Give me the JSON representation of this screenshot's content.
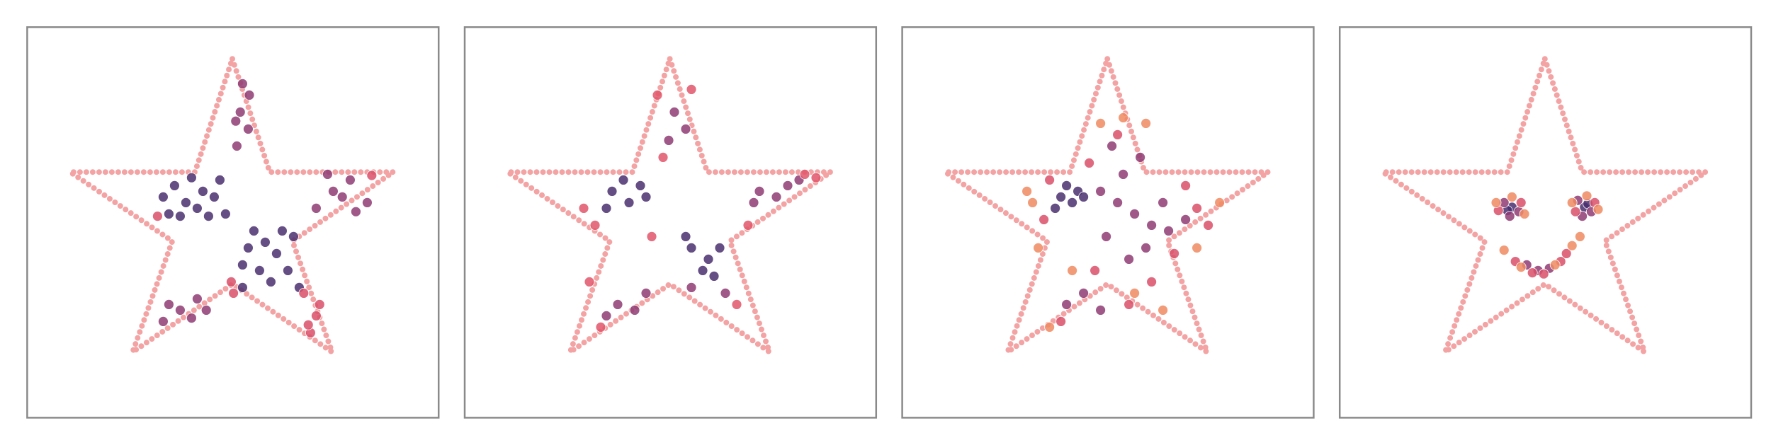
{
  "chart_data": [
    {
      "type": "scatter",
      "xlim": [
        0,
        363
      ],
      "ylim": [
        0,
        345
      ],
      "series": [
        {
          "color": "#4a2f6e",
          "x": [
            125,
            140,
            155,
            170,
            130,
            150,
            165,
            120,
            175,
            145,
            160,
            135,
            190,
            205,
            220,
            235,
            195,
            215,
            230,
            200,
            240,
            210,
            225,
            190
          ],
          "y": [
            180,
            190,
            200,
            210,
            205,
            185,
            195,
            195,
            180,
            212,
            178,
            178,
            115,
            130,
            145,
            160,
            150,
            120,
            130,
            165,
            115,
            155,
            165,
            135
          ]
        },
        {
          "color": "#8e3b73",
          "x": [
            255,
            270,
            285,
            300,
            265,
            290,
            278,
            185,
            195,
            188,
            196,
            190,
            184,
            120,
            135,
            150,
            125,
            145,
            158
          ],
          "y": [
            185,
            200,
            210,
            190,
            215,
            182,
            195,
            240,
            255,
            270,
            285,
            295,
            262,
            85,
            95,
            105,
            100,
            88,
            95
          ]
        },
        {
          "color": "#d9506a",
          "x": [
            250,
            255,
            258,
            248,
            115,
            180,
            244,
            304,
            182
          ],
          "y": [
            75,
            90,
            100,
            82,
            178,
            120,
            110,
            214,
            110
          ]
        }
      ]
    },
    {
      "type": "scatter",
      "xlim": [
        0,
        363
      ],
      "ylim": [
        0,
        345
      ],
      "series": [
        {
          "color": "#4a2f6e",
          "x": [
            130,
            145,
            160,
            140,
            125,
            155,
            200,
            215,
            210,
            225,
            195,
            220
          ],
          "y": [
            200,
            190,
            195,
            210,
            185,
            205,
            150,
            140,
            130,
            150,
            160,
            125
          ]
        },
        {
          "color": "#8e3b73",
          "x": [
            260,
            275,
            285,
            255,
            295,
            185,
            195,
            180,
            135,
            150,
            125,
            160,
            230,
            200
          ],
          "y": [
            200,
            195,
            205,
            190,
            210,
            270,
            255,
            245,
            100,
            95,
            90,
            110,
            110,
            115
          ]
        },
        {
          "color": "#e0566a",
          "x": [
            105,
            115,
            300,
            170,
            200,
            120,
            240,
            175,
            165,
            110,
            250,
            310
          ],
          "y": [
            185,
            170,
            215,
            285,
            290,
            80,
            100,
            230,
            160,
            120,
            170,
            212
          ]
        }
      ]
    },
    {
      "type": "scatter",
      "xlim": [
        0,
        363
      ],
      "ylim": [
        0,
        345
      ],
      "series": [
        {
          "color": "#4a2f6e",
          "x": [
            140,
            150,
            155,
            145,
            135,
            160
          ],
          "y": [
            195,
            190,
            200,
            205,
            185,
            195
          ]
        },
        {
          "color": "#8e3b73",
          "x": [
            175,
            190,
            205,
            220,
            235,
            250,
            200,
            215,
            180,
            160,
            145,
            175,
            230,
            195,
            210,
            185
          ],
          "y": [
            200,
            190,
            180,
            170,
            165,
            175,
            140,
            150,
            160,
            110,
            100,
            95,
            190,
            215,
            230,
            240
          ]
        },
        {
          "color": "#d9506a",
          "x": [
            125,
            130,
            260,
            270,
            220,
            140,
            200,
            170,
            240,
            190,
            165,
            250
          ],
          "y": [
            175,
            210,
            185,
            170,
            120,
            85,
            100,
            130,
            145,
            250,
            225,
            205
          ]
        },
        {
          "color": "#ef8a62",
          "x": [
            115,
            120,
            280,
            175,
            195,
            130,
            230,
            150,
            260,
            110,
            215,
            205
          ],
          "y": [
            190,
            150,
            190,
            260,
            265,
            80,
            95,
            130,
            150,
            200,
            260,
            110
          ]
        }
      ]
    },
    {
      "type": "scatter",
      "xlim": [
        0,
        363
      ],
      "ylim": [
        0,
        345
      ],
      "series": [
        {
          "color": "#4a2f6e",
          "x": [
            152,
            216,
            148,
            219
          ],
          "y": [
            186,
            186,
            183,
            189
          ]
        },
        {
          "color": "#8e3b73",
          "x": [
            145,
            158,
            150,
            210,
            222,
            214,
            165,
            175,
            185
          ],
          "y": [
            190,
            182,
            178,
            192,
            182,
            178,
            135,
            130,
            132
          ]
        },
        {
          "color": "#d9506a",
          "x": [
            140,
            160,
            208,
            225,
            155,
            195,
            170,
            180,
            200
          ],
          "y": [
            183,
            190,
            182,
            190,
            138,
            138,
            128,
            127,
            145
          ]
        },
        {
          "color": "#ef8a62",
          "x": [
            138,
            163,
            152,
            205,
            228,
            218,
            145,
            205,
            190,
            160,
            212
          ],
          "y": [
            190,
            180,
            195,
            190,
            184,
            196,
            148,
            152,
            135,
            133,
            160
          ]
        }
      ]
    }
  ]
}
